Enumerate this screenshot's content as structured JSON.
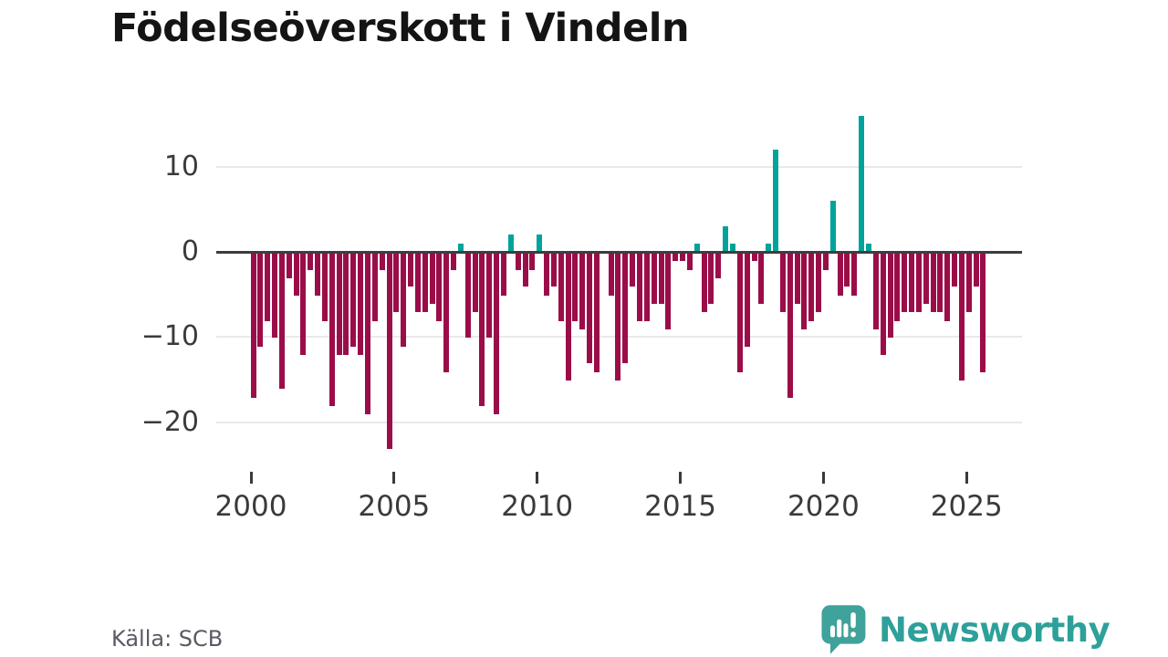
{
  "title": "Födelseöverskott i Vindeln",
  "footer": {
    "source": "Källa: SCB"
  },
  "brand": {
    "name": "Newsworthy"
  },
  "colors": {
    "positive_bar": "#00A39B",
    "negative_bar": "#9B0D48",
    "brand_teal": "#2EA09A",
    "icon_teal": "#3FA29B",
    "axis_text": "#3a3a3a",
    "zero_line": "#3d3d3d",
    "gridline": "#e9e9e9"
  },
  "y_axis": {
    "ticks": [
      {
        "label": "10",
        "value": 10
      },
      {
        "label": "0",
        "value": 0
      },
      {
        "label": "−10",
        "value": -10
      },
      {
        "label": "−20",
        "value": -20
      }
    ],
    "gridline_values": [
      10,
      -10,
      -20
    ]
  },
  "x_axis": {
    "ticks": [
      {
        "label": "2000",
        "year": 2000
      },
      {
        "label": "2005",
        "year": 2005
      },
      {
        "label": "2010",
        "year": 2010
      },
      {
        "label": "2015",
        "year": 2015
      },
      {
        "label": "2020",
        "year": 2020
      },
      {
        "label": "2025",
        "year": 2025
      }
    ]
  },
  "chart_data": {
    "type": "bar",
    "title": "Födelseöverskott i Vindeln",
    "xlabel": "",
    "ylabel": "",
    "frequency": "quarterly",
    "start_period": "2000-Q1",
    "end_period": "2025-Q3",
    "ylim": [
      -24,
      17
    ],
    "grid": "horizontal",
    "legend": "none",
    "categories": [
      "2000Q1",
      "2000Q2",
      "2000Q3",
      "2000Q4",
      "2001Q1",
      "2001Q2",
      "2001Q3",
      "2001Q4",
      "2002Q1",
      "2002Q2",
      "2002Q3",
      "2002Q4",
      "2003Q1",
      "2003Q2",
      "2003Q3",
      "2003Q4",
      "2004Q1",
      "2004Q2",
      "2004Q3",
      "2004Q4",
      "2005Q1",
      "2005Q2",
      "2005Q3",
      "2005Q4",
      "2006Q1",
      "2006Q2",
      "2006Q3",
      "2006Q4",
      "2007Q1",
      "2007Q2",
      "2007Q3",
      "2007Q4",
      "2008Q1",
      "2008Q2",
      "2008Q3",
      "2008Q4",
      "2009Q1",
      "2009Q2",
      "2009Q3",
      "2009Q4",
      "2010Q1",
      "2010Q2",
      "2010Q3",
      "2010Q4",
      "2011Q1",
      "2011Q2",
      "2011Q3",
      "2011Q4",
      "2012Q1",
      "2012Q2",
      "2012Q3",
      "2012Q4",
      "2013Q1",
      "2013Q2",
      "2013Q3",
      "2013Q4",
      "2014Q1",
      "2014Q2",
      "2014Q3",
      "2014Q4",
      "2015Q1",
      "2015Q2",
      "2015Q3",
      "2015Q4",
      "2016Q1",
      "2016Q2",
      "2016Q3",
      "2016Q4",
      "2017Q1",
      "2017Q2",
      "2017Q3",
      "2017Q4",
      "2018Q1",
      "2018Q2",
      "2018Q3",
      "2018Q4",
      "2019Q1",
      "2019Q2",
      "2019Q3",
      "2019Q4",
      "2020Q1",
      "2020Q2",
      "2020Q3",
      "2020Q4",
      "2021Q1",
      "2021Q2",
      "2021Q3",
      "2021Q4",
      "2022Q1",
      "2022Q2",
      "2022Q3",
      "2022Q4",
      "2023Q1",
      "2023Q2",
      "2023Q3",
      "2023Q4",
      "2024Q1",
      "2024Q2",
      "2024Q3",
      "2024Q4",
      "2025Q1",
      "2025Q2",
      "2025Q3"
    ],
    "values": [
      -17,
      -11,
      -8,
      -10,
      -16,
      -3,
      -5,
      -12,
      -2,
      -5,
      -8,
      -18,
      -12,
      -12,
      -11,
      -12,
      -19,
      -8,
      -2,
      -23,
      -7,
      -11,
      -4,
      -7,
      -7,
      -6,
      -8,
      -14,
      -2,
      1,
      -10,
      -7,
      -18,
      -10,
      -19,
      -5,
      2,
      -2,
      -4,
      -2,
      2,
      -5,
      -4,
      -8,
      -15,
      -8,
      -9,
      -13,
      -14,
      0,
      -5,
      -15,
      -13,
      -4,
      -8,
      -8,
      -6,
      -6,
      -9,
      -1,
      -1,
      -2,
      1,
      -7,
      -6,
      -3,
      3,
      1,
      -14,
      -11,
      -1,
      -6,
      1,
      12,
      -7,
      -17,
      -6,
      -9,
      -8,
      -7,
      -2,
      6,
      -5,
      -4,
      -5,
      16,
      1,
      -9,
      -12,
      -10,
      -8,
      -7,
      -7,
      -7,
      -6,
      -7,
      -7,
      -8,
      -4,
      -15,
      -7,
      -4,
      -14
    ]
  }
}
